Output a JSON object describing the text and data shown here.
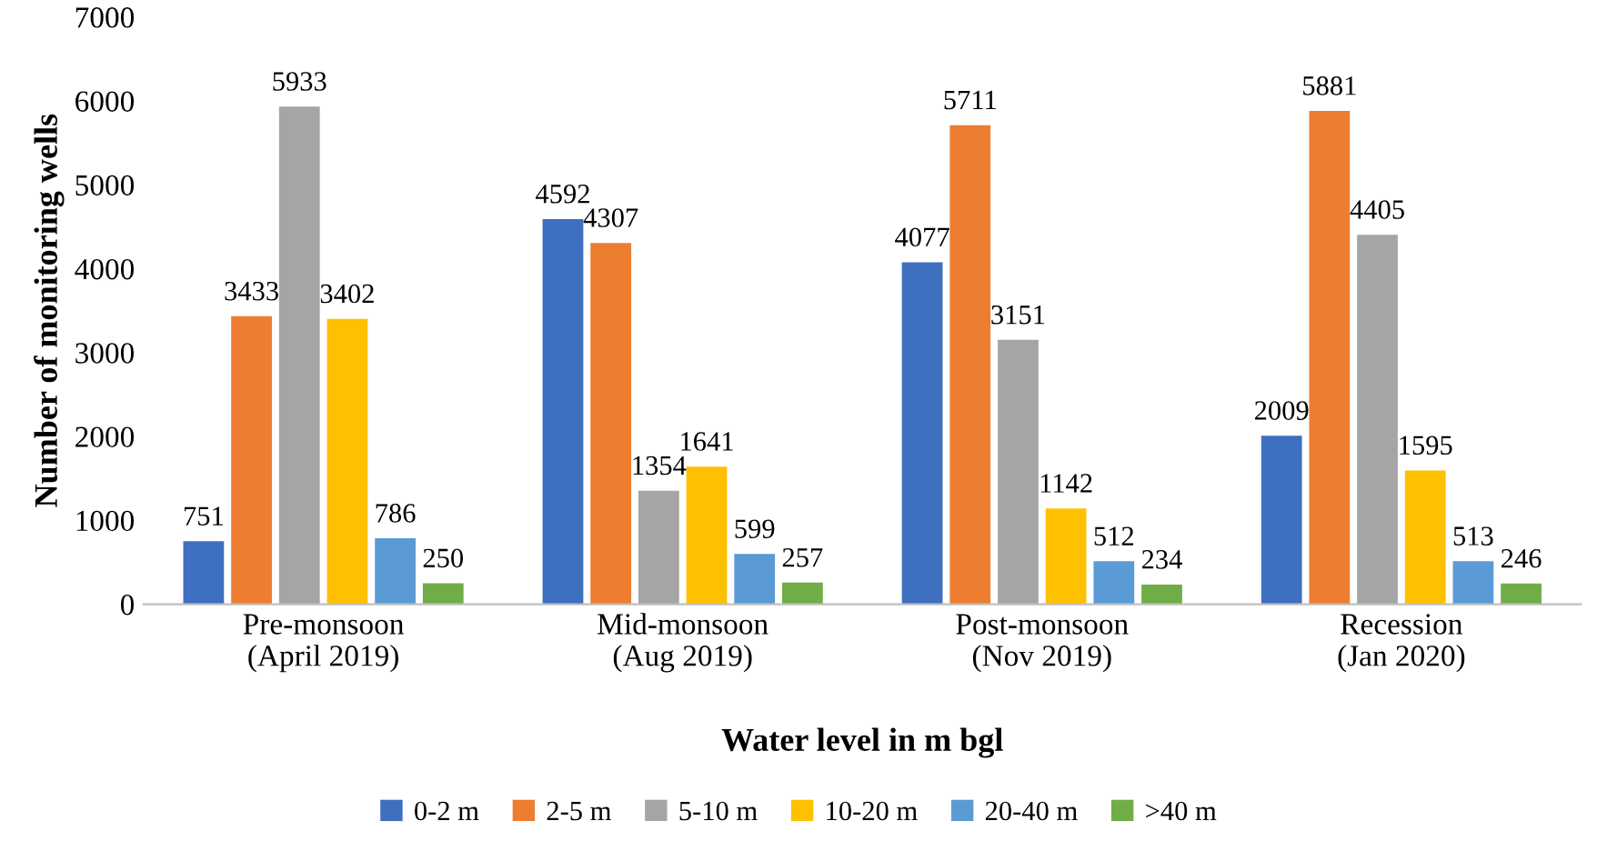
{
  "chart_data": {
    "type": "bar",
    "categories": [
      "Pre-monsoon\n(April 2019)",
      "Mid-monsoon\n(Aug 2019)",
      "Post-monsoon\n(Nov 2019)",
      "Recession\n(Jan 2020)"
    ],
    "series": [
      {
        "name": "0-2 m",
        "color": "#3f6fbf",
        "values": [
          751,
          4592,
          4077,
          2009
        ]
      },
      {
        "name": "2-5 m",
        "color": "#ed7d31",
        "values": [
          3433,
          4307,
          5711,
          5881
        ]
      },
      {
        "name": "5-10 m",
        "color": "#a5a5a5",
        "values": [
          5933,
          1354,
          3151,
          4405
        ]
      },
      {
        "name": "10-20 m",
        "color": "#ffc000",
        "values": [
          3402,
          1641,
          1142,
          1595
        ]
      },
      {
        "name": "20-40 m",
        "color": "#5b9bd5",
        "values": [
          786,
          599,
          512,
          513
        ]
      },
      {
        "name": ">40 m",
        "color": "#70ad47",
        "values": [
          250,
          257,
          234,
          246
        ]
      }
    ],
    "xlabel": "Water level in m bgl",
    "ylabel": "Number of monitoring wells",
    "ylim": [
      0,
      7000
    ],
    "yticks": [
      0,
      1000,
      2000,
      3000,
      4000,
      5000,
      6000,
      7000
    ],
    "data_labels": true,
    "legend": "bottom",
    "grid": false
  }
}
